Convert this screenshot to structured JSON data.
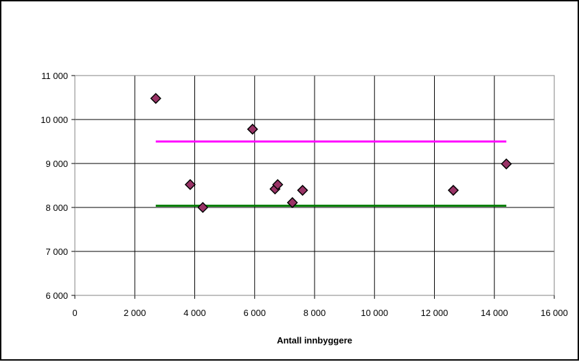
{
  "chart_data": {
    "type": "scatter",
    "title": "",
    "xlabel": "Antall innbyggere",
    "ylabel": "",
    "xlim": [
      0,
      16000
    ],
    "ylim": [
      6000,
      11000
    ],
    "x_ticks": [
      0,
      2000,
      4000,
      6000,
      8000,
      10000,
      12000,
      14000,
      16000
    ],
    "y_ticks": [
      6000,
      7000,
      8000,
      9000,
      10000,
      11000
    ],
    "x_tick_labels": [
      "0",
      "2 000",
      "4 000",
      "6 000",
      "8 000",
      "10 000",
      "12 000",
      "14 000",
      "16 000"
    ],
    "y_tick_labels": [
      "6 000",
      "7 000",
      "8 000",
      "9 000",
      "10 000",
      "11 000"
    ],
    "grid": true,
    "legend": "none",
    "series": [
      {
        "marker": "diamond",
        "color": "#993366",
        "points": [
          {
            "x": 2700,
            "y": 10480
          },
          {
            "x": 3850,
            "y": 8520
          },
          {
            "x": 4270,
            "y": 8000
          },
          {
            "x": 5930,
            "y": 9780
          },
          {
            "x": 6680,
            "y": 8420
          },
          {
            "x": 6770,
            "y": 8520
          },
          {
            "x": 7260,
            "y": 8110
          },
          {
            "x": 7600,
            "y": 8390
          },
          {
            "x": 12630,
            "y": 8390
          },
          {
            "x": 14400,
            "y": 8990
          }
        ]
      }
    ],
    "reference_lines": [
      {
        "color": "#ff00ff",
        "y": 9500,
        "x_start": 2700,
        "x_end": 14400
      },
      {
        "color": "#008000",
        "y": 8040,
        "x_start": 2700,
        "x_end": 14400
      }
    ]
  }
}
